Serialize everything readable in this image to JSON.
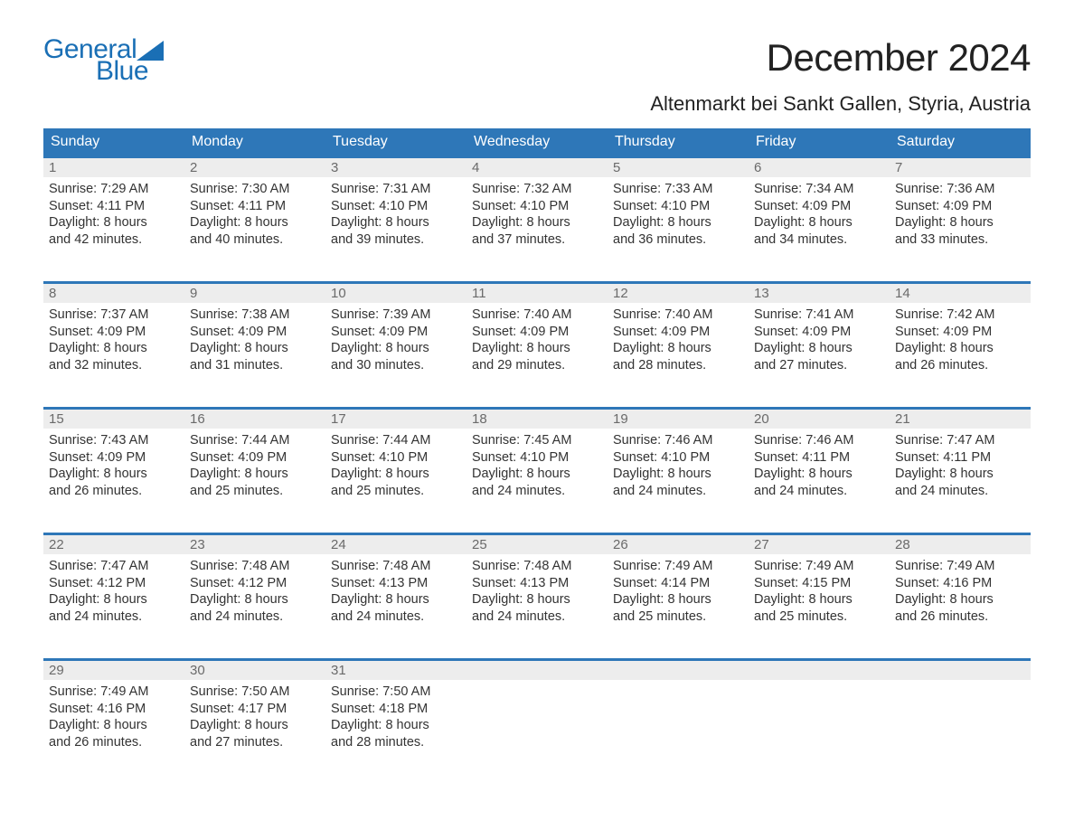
{
  "brand": {
    "line1": "General",
    "line2": "Blue",
    "color": "#1a6fb5"
  },
  "title": "December 2024",
  "location": "Altenmarkt bei Sankt Gallen, Styria, Austria",
  "colors": {
    "header_bg": "#2e77b8",
    "header_text": "#ffffff",
    "daynum_bg": "#ededed",
    "daynum_text": "#6a6a6a",
    "body_text": "#333333",
    "page_bg": "#ffffff",
    "row_border": "#2e77b8"
  },
  "typography": {
    "title_fontsize": 42,
    "location_fontsize": 22,
    "weekday_fontsize": 16,
    "daynum_fontsize": 15,
    "body_fontsize": 14.5,
    "logo_fontsize": 30
  },
  "weekdays": [
    "Sunday",
    "Monday",
    "Tuesday",
    "Wednesday",
    "Thursday",
    "Friday",
    "Saturday"
  ],
  "weeks": [
    [
      {
        "day": "1",
        "sunrise": "Sunrise: 7:29 AM",
        "sunset": "Sunset: 4:11 PM",
        "dl1": "Daylight: 8 hours",
        "dl2": "and 42 minutes."
      },
      {
        "day": "2",
        "sunrise": "Sunrise: 7:30 AM",
        "sunset": "Sunset: 4:11 PM",
        "dl1": "Daylight: 8 hours",
        "dl2": "and 40 minutes."
      },
      {
        "day": "3",
        "sunrise": "Sunrise: 7:31 AM",
        "sunset": "Sunset: 4:10 PM",
        "dl1": "Daylight: 8 hours",
        "dl2": "and 39 minutes."
      },
      {
        "day": "4",
        "sunrise": "Sunrise: 7:32 AM",
        "sunset": "Sunset: 4:10 PM",
        "dl1": "Daylight: 8 hours",
        "dl2": "and 37 minutes."
      },
      {
        "day": "5",
        "sunrise": "Sunrise: 7:33 AM",
        "sunset": "Sunset: 4:10 PM",
        "dl1": "Daylight: 8 hours",
        "dl2": "and 36 minutes."
      },
      {
        "day": "6",
        "sunrise": "Sunrise: 7:34 AM",
        "sunset": "Sunset: 4:09 PM",
        "dl1": "Daylight: 8 hours",
        "dl2": "and 34 minutes."
      },
      {
        "day": "7",
        "sunrise": "Sunrise: 7:36 AM",
        "sunset": "Sunset: 4:09 PM",
        "dl1": "Daylight: 8 hours",
        "dl2": "and 33 minutes."
      }
    ],
    [
      {
        "day": "8",
        "sunrise": "Sunrise: 7:37 AM",
        "sunset": "Sunset: 4:09 PM",
        "dl1": "Daylight: 8 hours",
        "dl2": "and 32 minutes."
      },
      {
        "day": "9",
        "sunrise": "Sunrise: 7:38 AM",
        "sunset": "Sunset: 4:09 PM",
        "dl1": "Daylight: 8 hours",
        "dl2": "and 31 minutes."
      },
      {
        "day": "10",
        "sunrise": "Sunrise: 7:39 AM",
        "sunset": "Sunset: 4:09 PM",
        "dl1": "Daylight: 8 hours",
        "dl2": "and 30 minutes."
      },
      {
        "day": "11",
        "sunrise": "Sunrise: 7:40 AM",
        "sunset": "Sunset: 4:09 PM",
        "dl1": "Daylight: 8 hours",
        "dl2": "and 29 minutes."
      },
      {
        "day": "12",
        "sunrise": "Sunrise: 7:40 AM",
        "sunset": "Sunset: 4:09 PM",
        "dl1": "Daylight: 8 hours",
        "dl2": "and 28 minutes."
      },
      {
        "day": "13",
        "sunrise": "Sunrise: 7:41 AM",
        "sunset": "Sunset: 4:09 PM",
        "dl1": "Daylight: 8 hours",
        "dl2": "and 27 minutes."
      },
      {
        "day": "14",
        "sunrise": "Sunrise: 7:42 AM",
        "sunset": "Sunset: 4:09 PM",
        "dl1": "Daylight: 8 hours",
        "dl2": "and 26 minutes."
      }
    ],
    [
      {
        "day": "15",
        "sunrise": "Sunrise: 7:43 AM",
        "sunset": "Sunset: 4:09 PM",
        "dl1": "Daylight: 8 hours",
        "dl2": "and 26 minutes."
      },
      {
        "day": "16",
        "sunrise": "Sunrise: 7:44 AM",
        "sunset": "Sunset: 4:09 PM",
        "dl1": "Daylight: 8 hours",
        "dl2": "and 25 minutes."
      },
      {
        "day": "17",
        "sunrise": "Sunrise: 7:44 AM",
        "sunset": "Sunset: 4:10 PM",
        "dl1": "Daylight: 8 hours",
        "dl2": "and 25 minutes."
      },
      {
        "day": "18",
        "sunrise": "Sunrise: 7:45 AM",
        "sunset": "Sunset: 4:10 PM",
        "dl1": "Daylight: 8 hours",
        "dl2": "and 24 minutes."
      },
      {
        "day": "19",
        "sunrise": "Sunrise: 7:46 AM",
        "sunset": "Sunset: 4:10 PM",
        "dl1": "Daylight: 8 hours",
        "dl2": "and 24 minutes."
      },
      {
        "day": "20",
        "sunrise": "Sunrise: 7:46 AM",
        "sunset": "Sunset: 4:11 PM",
        "dl1": "Daylight: 8 hours",
        "dl2": "and 24 minutes."
      },
      {
        "day": "21",
        "sunrise": "Sunrise: 7:47 AM",
        "sunset": "Sunset: 4:11 PM",
        "dl1": "Daylight: 8 hours",
        "dl2": "and 24 minutes."
      }
    ],
    [
      {
        "day": "22",
        "sunrise": "Sunrise: 7:47 AM",
        "sunset": "Sunset: 4:12 PM",
        "dl1": "Daylight: 8 hours",
        "dl2": "and 24 minutes."
      },
      {
        "day": "23",
        "sunrise": "Sunrise: 7:48 AM",
        "sunset": "Sunset: 4:12 PM",
        "dl1": "Daylight: 8 hours",
        "dl2": "and 24 minutes."
      },
      {
        "day": "24",
        "sunrise": "Sunrise: 7:48 AM",
        "sunset": "Sunset: 4:13 PM",
        "dl1": "Daylight: 8 hours",
        "dl2": "and 24 minutes."
      },
      {
        "day": "25",
        "sunrise": "Sunrise: 7:48 AM",
        "sunset": "Sunset: 4:13 PM",
        "dl1": "Daylight: 8 hours",
        "dl2": "and 24 minutes."
      },
      {
        "day": "26",
        "sunrise": "Sunrise: 7:49 AM",
        "sunset": "Sunset: 4:14 PM",
        "dl1": "Daylight: 8 hours",
        "dl2": "and 25 minutes."
      },
      {
        "day": "27",
        "sunrise": "Sunrise: 7:49 AM",
        "sunset": "Sunset: 4:15 PM",
        "dl1": "Daylight: 8 hours",
        "dl2": "and 25 minutes."
      },
      {
        "day": "28",
        "sunrise": "Sunrise: 7:49 AM",
        "sunset": "Sunset: 4:16 PM",
        "dl1": "Daylight: 8 hours",
        "dl2": "and 26 minutes."
      }
    ],
    [
      {
        "day": "29",
        "sunrise": "Sunrise: 7:49 AM",
        "sunset": "Sunset: 4:16 PM",
        "dl1": "Daylight: 8 hours",
        "dl2": "and 26 minutes."
      },
      {
        "day": "30",
        "sunrise": "Sunrise: 7:50 AM",
        "sunset": "Sunset: 4:17 PM",
        "dl1": "Daylight: 8 hours",
        "dl2": "and 27 minutes."
      },
      {
        "day": "31",
        "sunrise": "Sunrise: 7:50 AM",
        "sunset": "Sunset: 4:18 PM",
        "dl1": "Daylight: 8 hours",
        "dl2": "and 28 minutes."
      },
      {
        "day": "",
        "sunrise": "",
        "sunset": "",
        "dl1": "",
        "dl2": ""
      },
      {
        "day": "",
        "sunrise": "",
        "sunset": "",
        "dl1": "",
        "dl2": ""
      },
      {
        "day": "",
        "sunrise": "",
        "sunset": "",
        "dl1": "",
        "dl2": ""
      },
      {
        "day": "",
        "sunrise": "",
        "sunset": "",
        "dl1": "",
        "dl2": ""
      }
    ]
  ]
}
